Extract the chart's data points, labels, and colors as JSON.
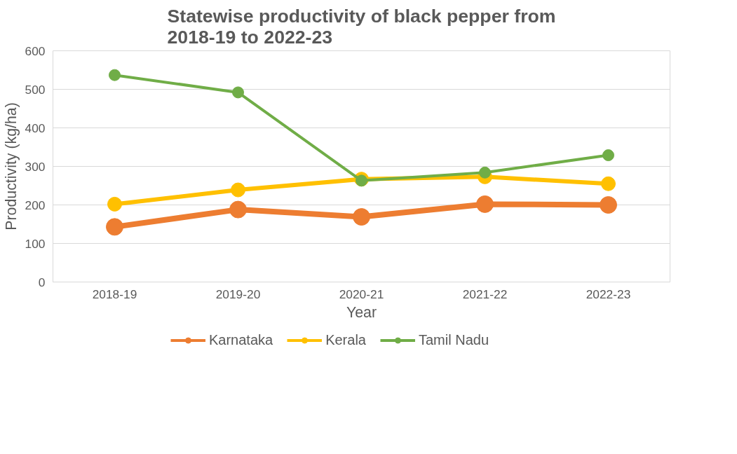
{
  "chart_data": {
    "type": "line",
    "title": "Statewise productivity of black pepper from 2018-19 to 2022-23",
    "xlabel": "Year",
    "ylabel": "Productivity (kg/ha)",
    "categories": [
      "2018-19",
      "2019-20",
      "2020-21",
      "2021-22",
      "2022-23"
    ],
    "series": [
      {
        "name": "Karnataka",
        "color": "#ed7d31",
        "values": [
          143,
          188,
          169,
          202,
          200
        ]
      },
      {
        "name": "Kerala",
        "color": "#ffc000",
        "values": [
          202,
          239,
          267,
          273,
          255
        ]
      },
      {
        "name": "Tamil Nadu",
        "color": "#70ad47",
        "values": [
          537,
          492,
          263,
          284,
          329
        ]
      }
    ],
    "ylim": [
      0,
      600
    ],
    "yticks": [
      0,
      100,
      200,
      300,
      400,
      500,
      600
    ],
    "grid": "y",
    "legend": "bottom",
    "marker": "circle",
    "line_style": "solid"
  }
}
